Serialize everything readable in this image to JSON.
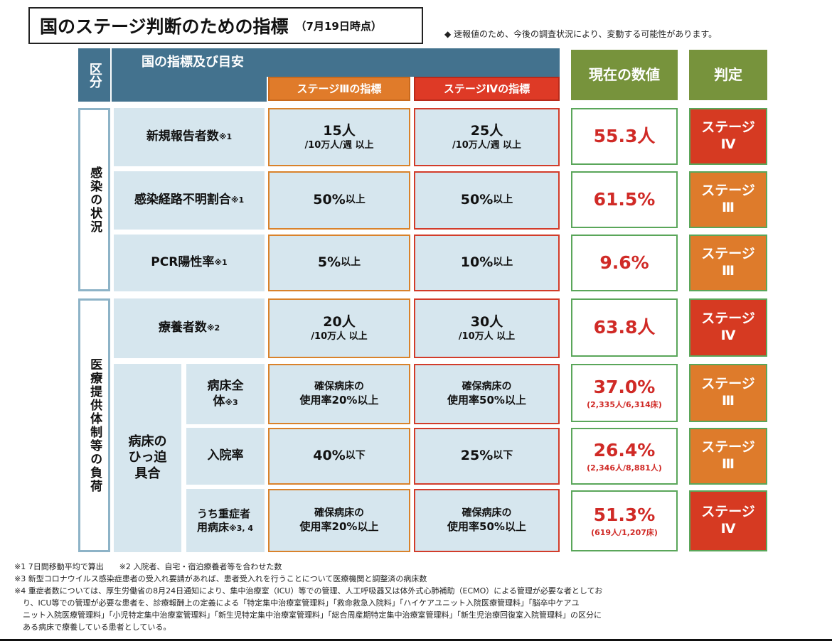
{
  "title": {
    "main": "国のステージ判断のための指標",
    "date": "（7月19日時点）"
  },
  "top_note": "◆ 速報値のため、今後の調査状況により、変動する可能性があります。",
  "header": {
    "kubun": "区分",
    "kuni": "国の指標及び目安",
    "stage3": "ステージⅢの指標",
    "stage4": "ステージⅣの指標",
    "current": "現在の数値",
    "judgement": "判定"
  },
  "categories": {
    "infection": "感染の状況",
    "medical": "医療提供体制等の負荷"
  },
  "sub_label": {
    "bed": "病床のひっ迫具合"
  },
  "rows": [
    {
      "label": "新規報告者数",
      "note": "※1",
      "s3_main": "15人",
      "s3_sub": "/10万人/週 以上",
      "s4_main": "25人",
      "s4_sub": "/10万人/週 以上",
      "current": "55.3人",
      "current_sub": "",
      "judge_line1": "ステージ",
      "judge_line2": "Ⅳ",
      "judge_color": "#d63a22"
    },
    {
      "label": "感染経路不明割合",
      "note": "※1",
      "s3_main": "50%",
      "s3_sub": "以上",
      "s4_main": "50%",
      "s4_sub": "以上",
      "current": "61.5%",
      "current_sub": "",
      "judge_line1": "ステージ",
      "judge_line2": "Ⅲ",
      "judge_color": "#de7b2b"
    },
    {
      "label": "PCR陽性率",
      "note": "※1",
      "s3_main": "5%",
      "s3_sub": "以上",
      "s4_main": "10%",
      "s4_sub": "以上",
      "current": "9.6%",
      "current_sub": "",
      "judge_line1": "ステージ",
      "judge_line2": "Ⅲ",
      "judge_color": "#de7b2b"
    },
    {
      "label": "療養者数",
      "note": "※2",
      "s3_main": "20人",
      "s3_sub": "/10万人 以上",
      "s4_main": "30人",
      "s4_sub": "/10万人 以上",
      "current": "63.8人",
      "current_sub": "",
      "judge_line1": "ステージ",
      "judge_line2": "Ⅳ",
      "judge_color": "#d63a22"
    },
    {
      "label": "病床全体",
      "note": "※3",
      "s3_main": "確保病床の",
      "s3_sub": "使用率20%以上",
      "s4_main": "確保病床の",
      "s4_sub": "使用率50%以上",
      "current": "37.0%",
      "current_sub": "(2,335人/6,314床)",
      "judge_line1": "ステージ",
      "judge_line2": "Ⅲ",
      "judge_color": "#de7b2b"
    },
    {
      "label": "入院率",
      "note": "",
      "s3_main": "40%",
      "s3_sub": "以下",
      "s4_main": "25%",
      "s4_sub": "以下",
      "current": "26.4%",
      "current_sub": "(2,346人/8,881人)",
      "judge_line1": "ステージ",
      "judge_line2": "Ⅲ",
      "judge_color": "#de7b2b"
    },
    {
      "label": "うち重症者用病床",
      "note": "※3, 4",
      "s3_main": "確保病床の",
      "s3_sub": "使用率20%以上",
      "s4_main": "確保病床の",
      "s4_sub": "使用率50%以上",
      "current": "51.3%",
      "current_sub": "(619人/1,207床)",
      "judge_line1": "ステージ",
      "judge_line2": "Ⅳ",
      "judge_color": "#d63a22"
    }
  ],
  "footnotes": [
    "※1 7日間移動平均で算出　　※2 入院者、自宅・宿泊療養者等を合わせた数",
    "※3 新型コロナウイルス感染症患者の受入れ要請があれば、患者受入れを行うことについて医療機関と調整済の病床数",
    "※4 重症者数については、厚生労働省の8月24日通知により、集中治療室（ICU）等での管理、人工呼吸器又は体外式心肺補助（ECMO）による管理が必要な者としてお",
    "り、ICU等での管理が必要な患者を、診療報酬上の定義による「特定集中治療室管理料」「救命救急入院料」「ハイケアユニット入院医療管理料」「脳卒中ケアユ",
    "ニット入院医療管理料」「小児特定集中治療室管理料」「新生児特定集中治療室管理料」「総合周産期特定集中治療室管理料」「新生児治療回復室入院管理料」の区分に",
    "ある病床で療養している患者としている。"
  ]
}
